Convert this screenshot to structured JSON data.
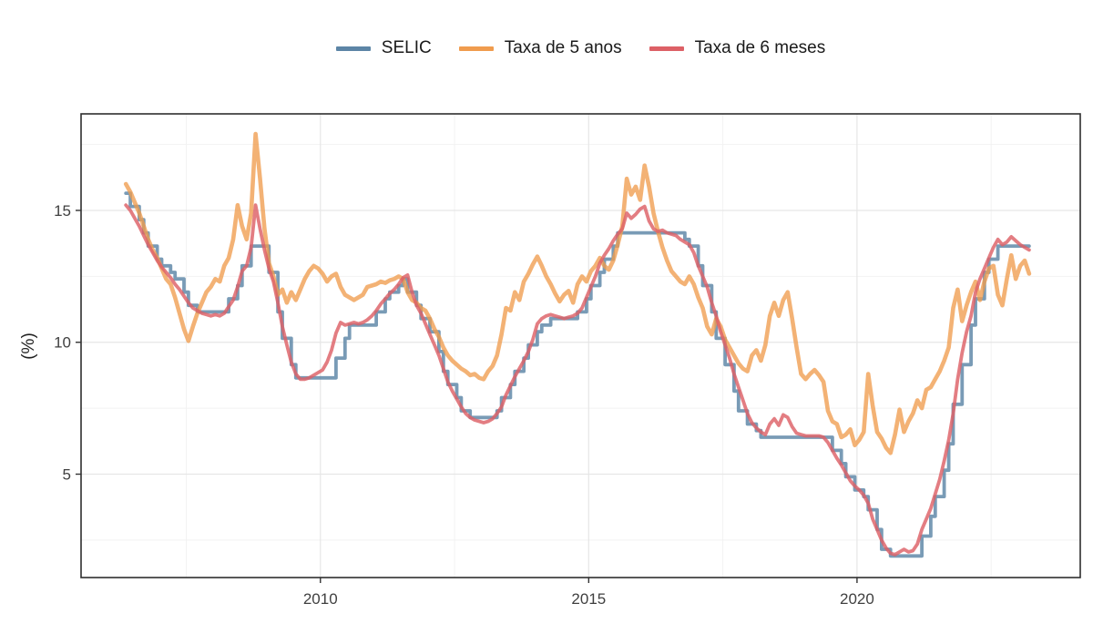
{
  "figure": {
    "y_axis_label": "(%)",
    "background": "#ffffff"
  },
  "legend": {
    "items": [
      {
        "label": "SELIC",
        "color": "#5c85a6"
      },
      {
        "label": "Taxa de 5 anos",
        "color": "#f09c4e"
      },
      {
        "label": "Taxa de 6 meses",
        "color": "#dd6066"
      }
    ]
  },
  "chart_data": {
    "type": "line",
    "title": "",
    "xlabel": "",
    "ylabel": "(%)",
    "x_unit": "decimal_year_monthly",
    "x_start": 2006.375,
    "x_step": 0.0833333,
    "x_domain": [
      2005.54,
      2024.16
    ],
    "y_domain": [
      1.08,
      18.66
    ],
    "x_ticks": [
      {
        "value": 2010,
        "label": "2010"
      },
      {
        "value": 2015,
        "label": "2015"
      },
      {
        "value": 2020,
        "label": "2020"
      }
    ],
    "x_minor": [
      2007.5,
      2012.5,
      2017.5,
      2022.5
    ],
    "y_ticks": [
      {
        "value": 5,
        "label": "5"
      },
      {
        "value": 10,
        "label": "10"
      },
      {
        "value": 15,
        "label": "15"
      }
    ],
    "y_minor": [
      2.5,
      7.5,
      12.5,
      17.5
    ],
    "grid": {
      "major_color": "#e6e6e6",
      "minor_color": "#f2f2f2"
    },
    "panel_border_color": "#2e2e2e",
    "legend_position": "top-center",
    "series": [
      {
        "name": "SELIC",
        "color": "#5c85a6",
        "width": 3.8,
        "opacity": 0.82,
        "step": true,
        "values": [
          15.65,
          15.15,
          15.15,
          14.65,
          14.15,
          13.65,
          13.65,
          13.15,
          12.9,
          12.9,
          12.65,
          12.4,
          12.4,
          11.9,
          11.4,
          11.4,
          11.15,
          11.15,
          11.15,
          11.15,
          11.15,
          11.15,
          11.15,
          11.65,
          11.65,
          12.15,
          12.9,
          12.9,
          13.65,
          13.65,
          13.65,
          13.65,
          12.65,
          12.65,
          11.15,
          10.15,
          10.15,
          9.15,
          8.65,
          8.65,
          8.65,
          8.65,
          8.65,
          8.65,
          8.65,
          8.65,
          8.65,
          9.4,
          9.4,
          10.15,
          10.65,
          10.65,
          10.65,
          10.65,
          10.65,
          10.65,
          11.15,
          11.15,
          11.65,
          11.9,
          11.9,
          12.15,
          12.4,
          11.9,
          11.9,
          11.4,
          10.9,
          10.9,
          10.4,
          10.4,
          9.65,
          8.9,
          8.4,
          8.4,
          7.9,
          7.4,
          7.4,
          7.15,
          7.15,
          7.15,
          7.15,
          7.15,
          7.15,
          7.4,
          7.9,
          7.9,
          8.4,
          8.9,
          8.9,
          9.4,
          9.9,
          9.9,
          10.4,
          10.65,
          10.65,
          10.9,
          10.9,
          10.9,
          10.9,
          10.9,
          10.9,
          11.15,
          11.15,
          11.65,
          12.15,
          12.15,
          12.65,
          13.15,
          13.15,
          13.65,
          14.15,
          14.15,
          14.15,
          14.15,
          14.15,
          14.15,
          14.15,
          14.15,
          14.15,
          14.15,
          14.15,
          14.15,
          14.15,
          14.15,
          14.15,
          13.9,
          13.65,
          13.65,
          12.9,
          12.15,
          12.15,
          11.15,
          10.15,
          10.15,
          9.15,
          9.15,
          8.15,
          7.4,
          7.4,
          6.9,
          6.9,
          6.65,
          6.4,
          6.4,
          6.4,
          6.4,
          6.4,
          6.4,
          6.4,
          6.4,
          6.4,
          6.4,
          6.4,
          6.4,
          6.4,
          6.4,
          6.4,
          6.4,
          5.9,
          5.9,
          5.4,
          4.9,
          4.9,
          4.4,
          4.4,
          4.15,
          3.65,
          3.65,
          2.9,
          2.15,
          2.15,
          1.9,
          1.9,
          1.9,
          1.9,
          1.9,
          1.9,
          1.9,
          2.65,
          2.65,
          3.4,
          4.15,
          4.15,
          5.15,
          6.15,
          7.65,
          7.65,
          9.15,
          9.15,
          10.65,
          11.65,
          11.65,
          12.65,
          13.15,
          13.15,
          13.65,
          13.65,
          13.65,
          13.65,
          13.65,
          13.65,
          13.65,
          13.65
        ]
      },
      {
        "name": "Taxa de 5 anos",
        "color": "#f09c4e",
        "width": 4.6,
        "opacity": 0.78,
        "step": false,
        "values": [
          16.0,
          15.7,
          15.3,
          14.9,
          14.4,
          13.9,
          13.5,
          13.2,
          12.8,
          12.4,
          12.2,
          11.7,
          11.1,
          10.5,
          10.05,
          10.6,
          11.1,
          11.5,
          11.9,
          12.1,
          12.4,
          12.3,
          12.9,
          13.2,
          13.9,
          15.2,
          14.4,
          13.9,
          14.9,
          17.9,
          16.2,
          14.3,
          13.0,
          12.5,
          11.8,
          12.0,
          11.5,
          11.9,
          11.6,
          12.0,
          12.4,
          12.7,
          12.9,
          12.8,
          12.6,
          12.3,
          12.5,
          12.6,
          12.1,
          11.8,
          11.7,
          11.6,
          11.7,
          11.8,
          12.1,
          12.15,
          12.2,
          12.3,
          12.25,
          12.35,
          12.4,
          12.5,
          12.4,
          11.9,
          11.6,
          11.5,
          11.3,
          11.2,
          10.9,
          10.5,
          10.2,
          9.8,
          9.5,
          9.3,
          9.15,
          9.0,
          8.9,
          8.75,
          8.8,
          8.65,
          8.6,
          8.9,
          9.1,
          9.5,
          10.3,
          11.3,
          11.2,
          11.9,
          11.6,
          12.3,
          12.6,
          12.95,
          13.25,
          12.9,
          12.5,
          12.2,
          11.85,
          11.55,
          11.8,
          11.95,
          11.5,
          12.2,
          12.5,
          12.3,
          12.7,
          12.9,
          13.2,
          12.9,
          12.75,
          13.1,
          13.7,
          14.4,
          16.2,
          15.6,
          15.9,
          15.4,
          16.7,
          15.9,
          14.9,
          14.2,
          13.6,
          13.1,
          12.7,
          12.5,
          12.3,
          12.2,
          12.5,
          12.2,
          11.7,
          11.3,
          10.6,
          10.3,
          10.9,
          10.6,
          10.1,
          9.8,
          9.5,
          9.2,
          9.0,
          8.9,
          9.5,
          9.7,
          9.3,
          9.9,
          11.0,
          11.5,
          11.0,
          11.6,
          11.9,
          10.9,
          9.8,
          8.8,
          8.6,
          8.8,
          8.95,
          8.75,
          8.5,
          7.4,
          7.0,
          6.9,
          6.4,
          6.5,
          6.7,
          6.1,
          6.3,
          6.6,
          8.8,
          7.6,
          6.6,
          6.35,
          6.0,
          5.8,
          6.5,
          7.45,
          6.6,
          7.0,
          7.3,
          7.8,
          7.5,
          8.2,
          8.3,
          8.6,
          8.9,
          9.3,
          9.8,
          11.3,
          12.0,
          10.8,
          11.4,
          11.9,
          12.3,
          11.6,
          12.3,
          12.8,
          12.9,
          11.8,
          11.4,
          12.4,
          13.3,
          12.4,
          12.9,
          13.1,
          12.6
        ]
      },
      {
        "name": "Taxa de 6 meses",
        "color": "#dd6066",
        "width": 3.8,
        "opacity": 0.82,
        "step": false,
        "values": [
          15.2,
          15.0,
          14.7,
          14.4,
          14.05,
          13.7,
          13.4,
          13.1,
          12.85,
          12.65,
          12.45,
          12.2,
          12.0,
          11.75,
          11.5,
          11.3,
          11.2,
          11.1,
          11.05,
          11.0,
          11.05,
          11.0,
          11.1,
          11.35,
          11.6,
          12.1,
          12.7,
          12.9,
          13.6,
          15.2,
          14.3,
          13.5,
          12.8,
          12.3,
          11.5,
          10.6,
          9.9,
          9.25,
          8.8,
          8.6,
          8.6,
          8.65,
          8.75,
          8.85,
          8.95,
          9.25,
          9.7,
          10.35,
          10.75,
          10.65,
          10.7,
          10.75,
          10.7,
          10.75,
          10.85,
          11.0,
          11.2,
          11.45,
          11.65,
          11.85,
          12.0,
          12.2,
          12.45,
          12.55,
          11.9,
          11.4,
          11.1,
          10.7,
          10.3,
          9.9,
          9.5,
          9.0,
          8.5,
          8.15,
          7.85,
          7.55,
          7.3,
          7.15,
          7.05,
          7.0,
          6.95,
          7.0,
          7.1,
          7.3,
          7.55,
          8.0,
          8.35,
          8.7,
          9.0,
          9.3,
          9.65,
          10.1,
          10.7,
          10.9,
          11.0,
          11.05,
          11.0,
          10.95,
          10.9,
          10.95,
          11.0,
          11.1,
          11.3,
          11.7,
          12.1,
          12.5,
          13.0,
          13.3,
          13.55,
          13.85,
          14.1,
          14.3,
          14.9,
          14.7,
          14.85,
          15.05,
          15.15,
          14.6,
          14.3,
          14.2,
          14.25,
          14.15,
          14.1,
          14.05,
          13.9,
          13.8,
          13.7,
          13.4,
          12.9,
          12.5,
          12.1,
          11.5,
          11.0,
          10.4,
          9.9,
          9.4,
          8.8,
          8.3,
          7.8,
          7.3,
          6.95,
          6.75,
          6.6,
          6.5,
          6.9,
          7.1,
          6.85,
          7.25,
          7.15,
          6.8,
          6.55,
          6.5,
          6.45,
          6.45,
          6.45,
          6.45,
          6.4,
          6.2,
          5.9,
          5.6,
          5.35,
          5.05,
          4.75,
          4.55,
          4.4,
          4.2,
          3.9,
          3.3,
          2.9,
          2.5,
          2.2,
          2.0,
          1.95,
          2.05,
          2.15,
          2.05,
          2.1,
          2.35,
          2.9,
          3.3,
          3.7,
          4.25,
          4.8,
          5.5,
          6.3,
          7.3,
          8.6,
          9.6,
          10.4,
          11.0,
          11.9,
          12.4,
          12.8,
          13.2,
          13.6,
          13.9,
          13.7,
          13.8,
          14.0,
          13.85,
          13.7,
          13.6,
          13.5
        ]
      }
    ]
  }
}
